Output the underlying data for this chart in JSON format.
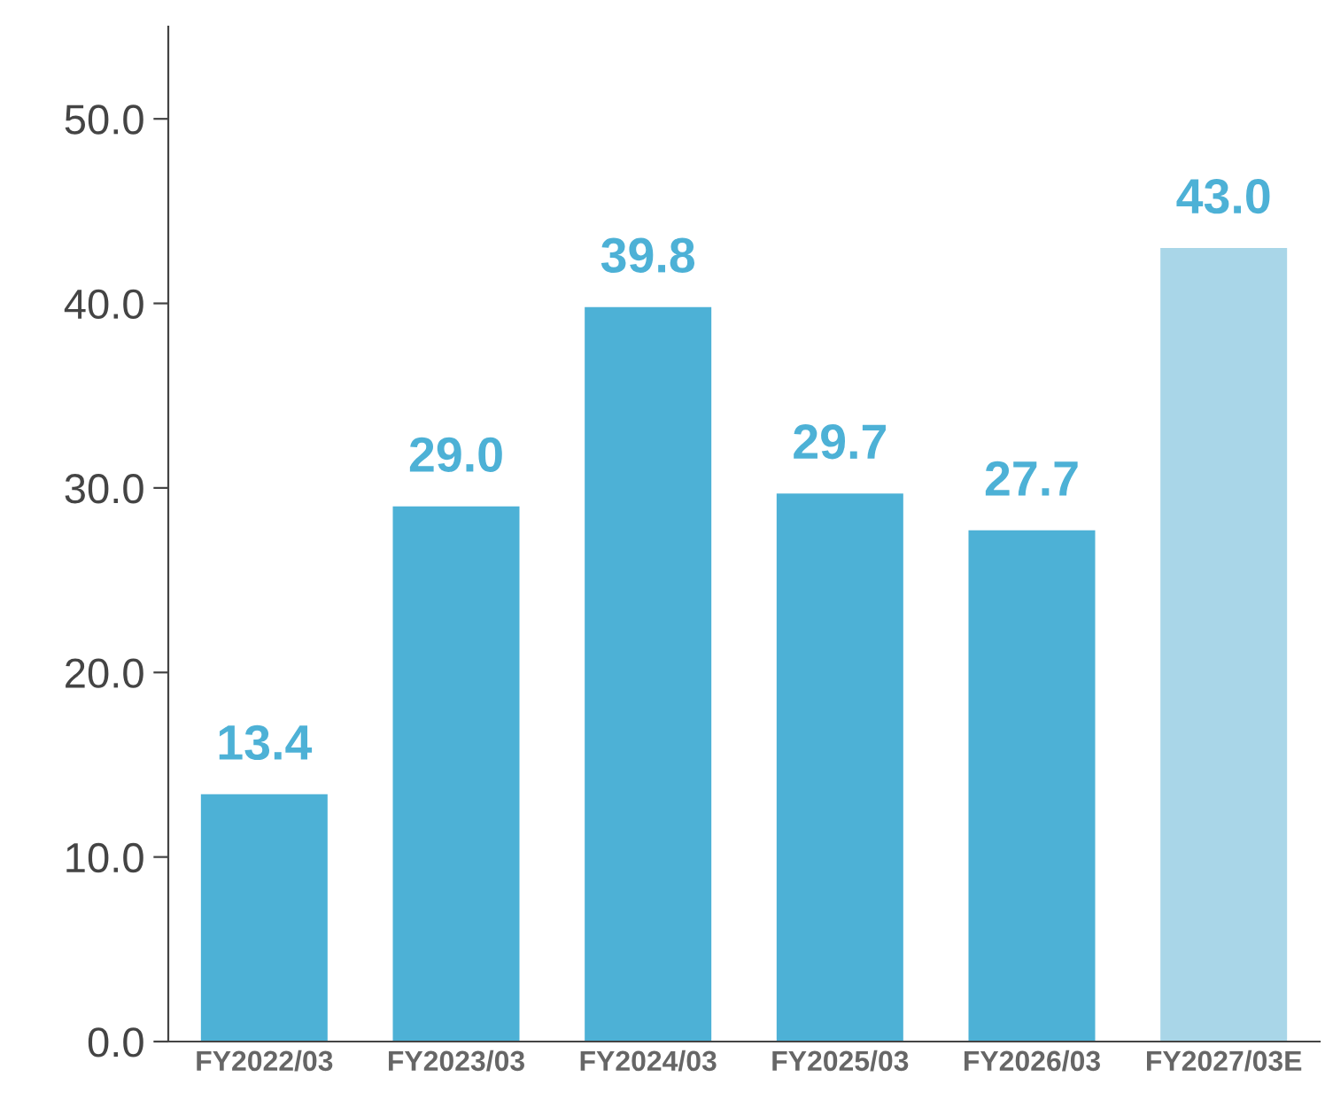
{
  "chart_data": {
    "type": "bar",
    "categories": [
      "FY2022/03",
      "FY2023/03",
      "FY2024/03",
      "FY2025/03",
      "FY2026/03",
      "FY2027/03E"
    ],
    "values": [
      13.4,
      29.0,
      39.8,
      29.7,
      27.7,
      43.0
    ],
    "colors": [
      "#4db1d6",
      "#4db1d6",
      "#4db1d6",
      "#4db1d6",
      "#4db1d6",
      "#a9d6e8"
    ],
    "value_labels": [
      "13.4",
      "29.0",
      "39.8",
      "29.7",
      "27.7",
      "43.0"
    ],
    "ylim": [
      0,
      55
    ],
    "yticks": [
      {
        "value": 0,
        "label": "0.0"
      },
      {
        "value": 10,
        "label": "10.0"
      },
      {
        "value": 20,
        "label": "20.0"
      },
      {
        "value": 30,
        "label": "30.0"
      },
      {
        "value": 40,
        "label": "40.0"
      },
      {
        "value": 50,
        "label": "50.0"
      }
    ],
    "grid": false,
    "legend": false
  }
}
